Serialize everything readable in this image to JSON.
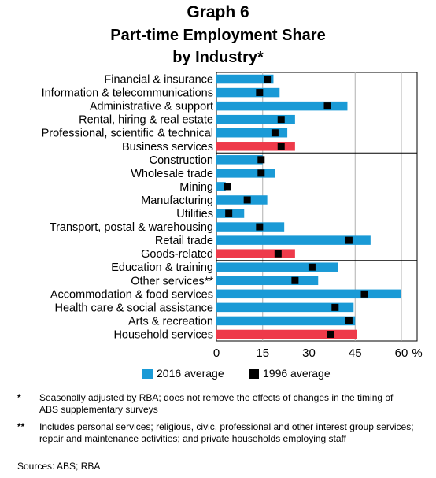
{
  "title": "Graph 6",
  "subtitle_line1": "Part-time Employment Share",
  "subtitle_line2": "by Industry*",
  "colors": {
    "bar_2016": "#1a9ad6",
    "bar_group": "#ee3a4a",
    "marker_1996": "#000000",
    "grid": "#b0b0b0"
  },
  "legend": {
    "bar_label": "2016 average",
    "marker_label": "1996 average"
  },
  "footnotes": {
    "star_mark": "*",
    "star_text": "Seasonally adjusted by RBA; does not remove the effects of changes in the timing of ABS supplementary surveys",
    "dstar_mark": "**",
    "dstar_text": "Includes personal services; religious, civic, professional and other interest group services; repair and maintenance activities; and private households employing staff",
    "sources": "Sources: ABS; RBA"
  },
  "chart_data": {
    "type": "bar",
    "orientation": "horizontal",
    "xlabel": "%",
    "xlim": [
      0,
      60
    ],
    "xticks": [
      0,
      15,
      30,
      45,
      60
    ],
    "grid": true,
    "categories": [
      "Financial & insurance",
      "Information & telecommunications",
      "Administrative & support",
      "Rental, hiring & real estate",
      "Professional, scientific & technical",
      "Business services",
      "Construction",
      "Wholesale trade",
      "Mining",
      "Manufacturing",
      "Utilities",
      "Transport, postal & warehousing",
      "Retail trade",
      "Goods-related",
      "Education & training",
      "Other services**",
      "Accommodation & food services",
      "Health care & social assistance",
      "Arts & recreation",
      "Household services"
    ],
    "group_totals": [
      "Business services",
      "Goods-related",
      "Household services"
    ],
    "group_breaks_after": [
      "Business services",
      "Goods-related"
    ],
    "series": [
      {
        "name": "2016 average",
        "values": [
          18.5,
          20.5,
          42.5,
          25.5,
          23,
          25.5,
          15,
          19,
          3,
          16.5,
          9,
          22,
          50,
          25.5,
          39.5,
          33,
          60,
          44.5,
          45,
          45.5
        ]
      },
      {
        "name": "1996 average",
        "values": [
          16.5,
          14,
          36,
          21,
          19,
          21,
          14.5,
          14.5,
          3.5,
          10,
          4,
          14,
          43,
          20,
          31,
          25.5,
          48,
          38.5,
          43,
          37
        ]
      }
    ]
  }
}
